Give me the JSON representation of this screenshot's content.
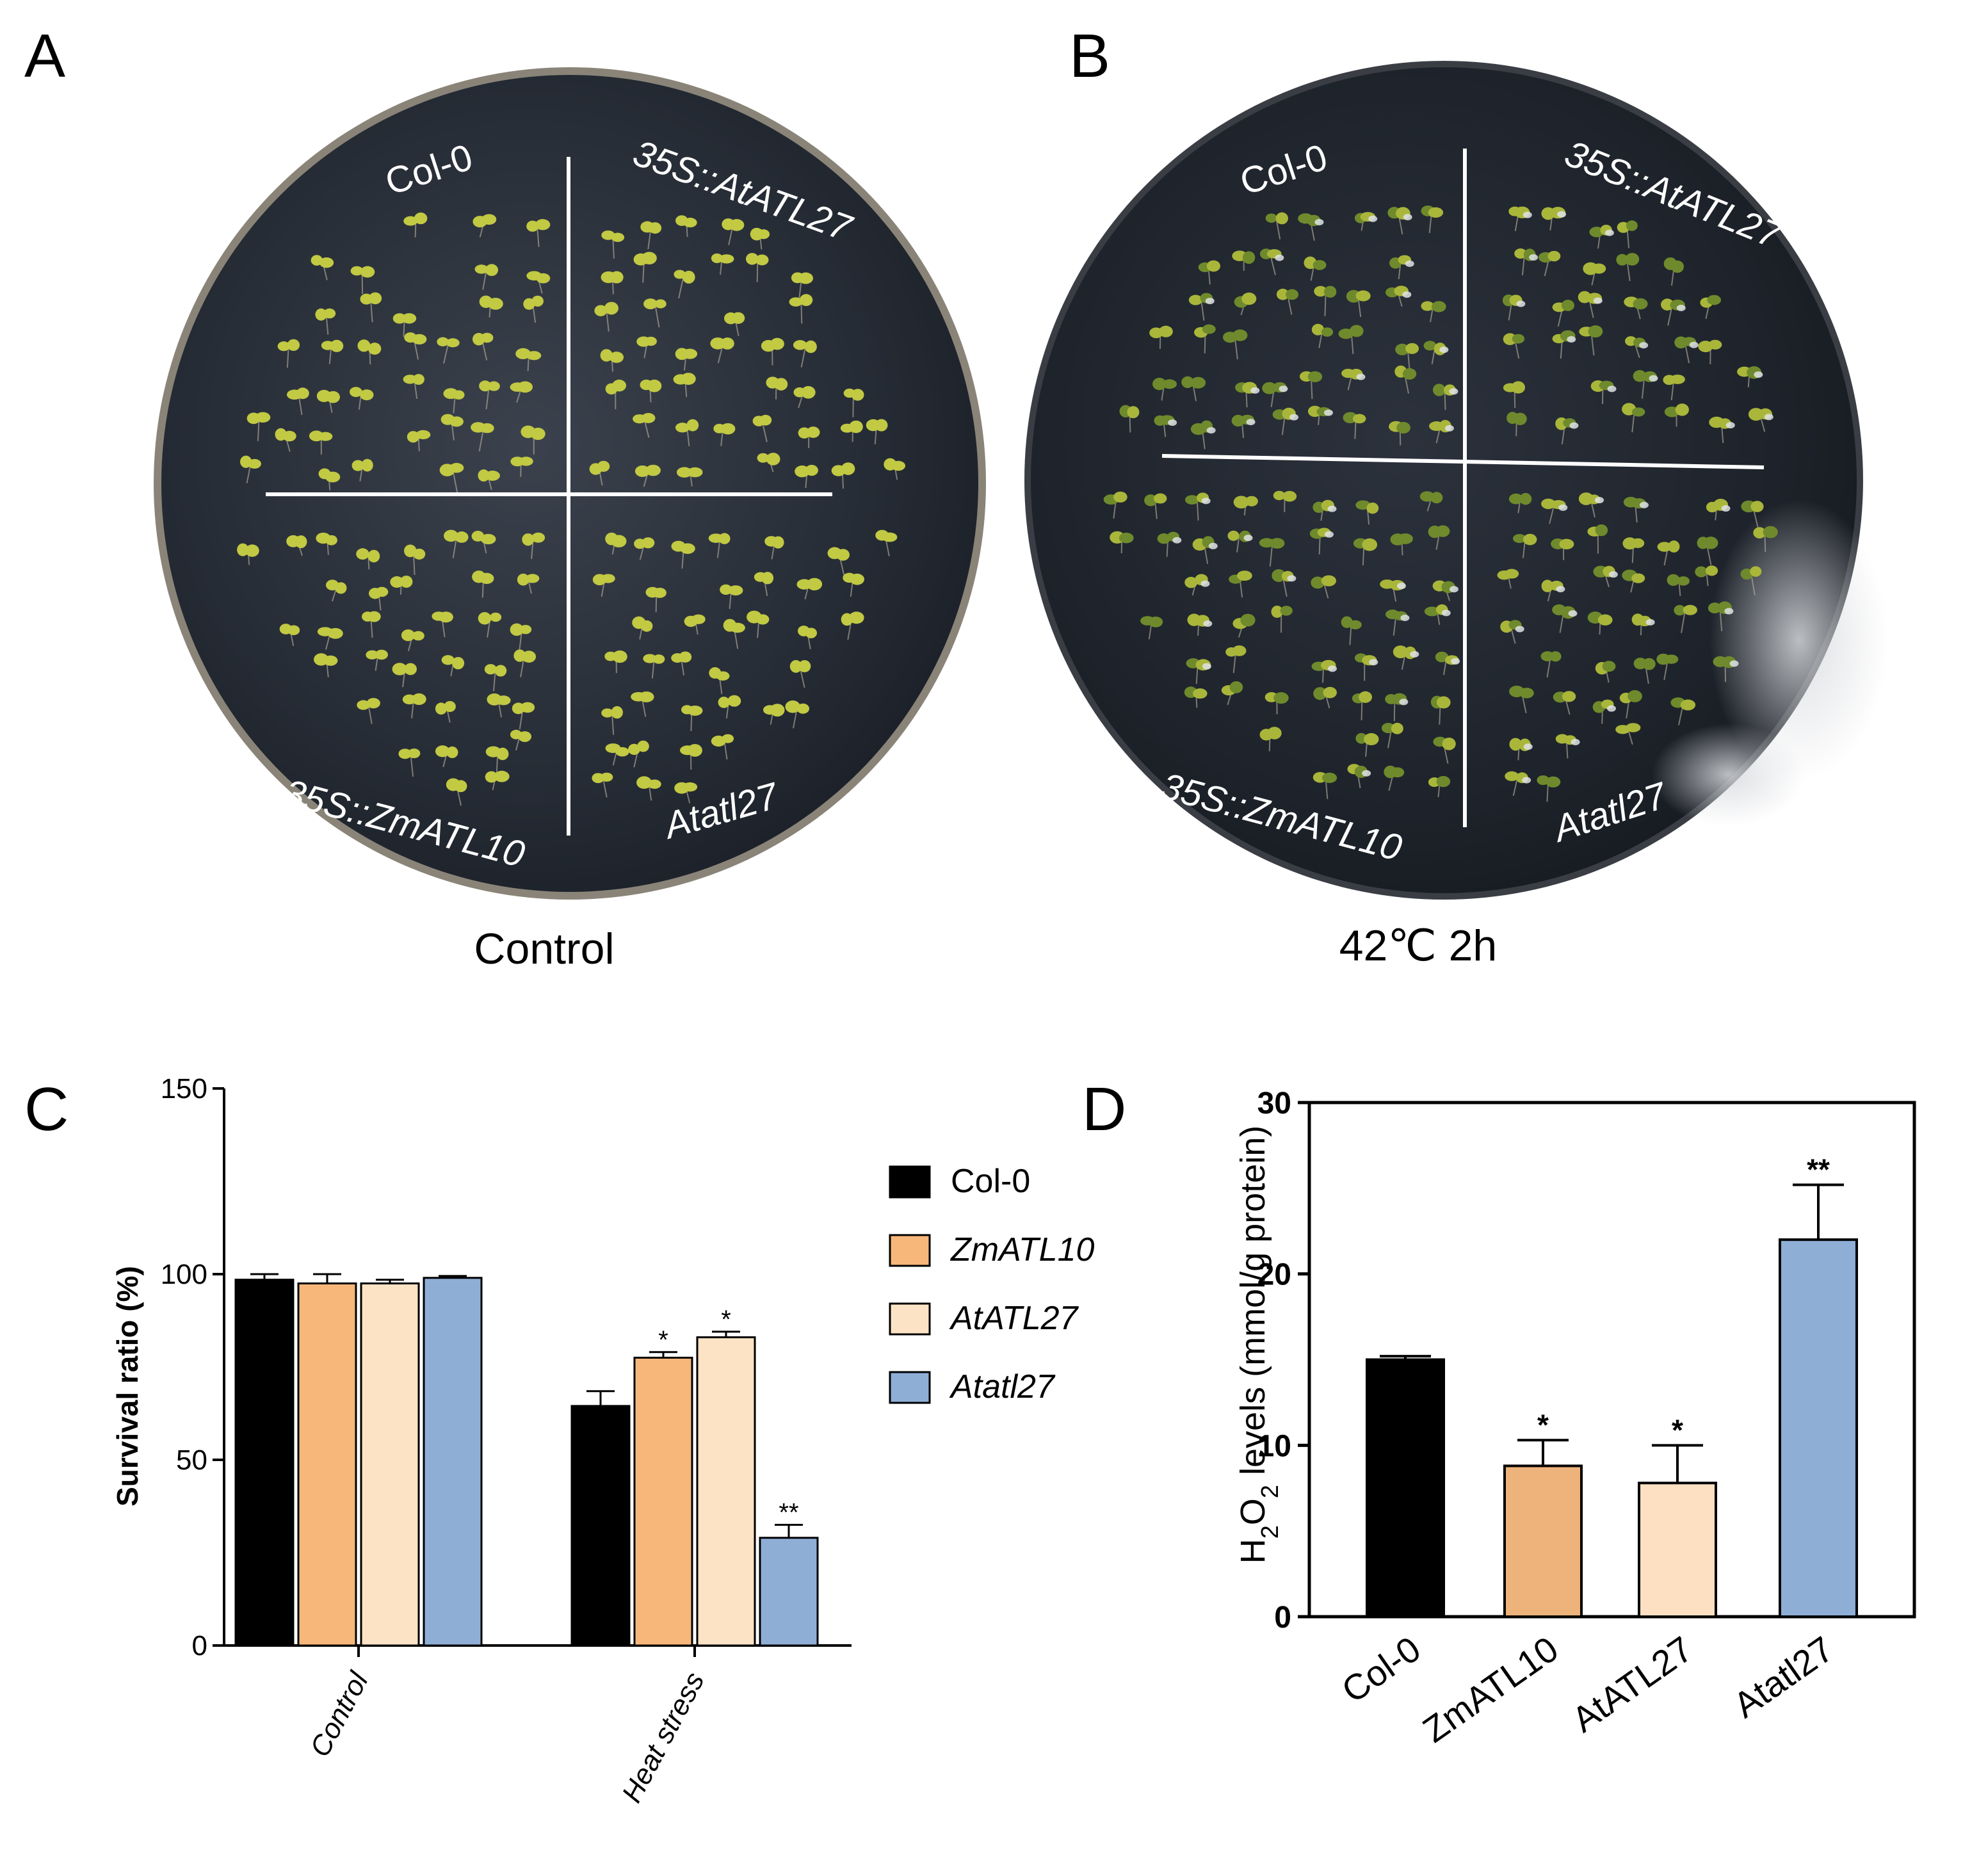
{
  "panels": {
    "A": {
      "letter": "A",
      "caption": "Control",
      "labels": {
        "tl": "Col-0",
        "tr": "35S::AtATL27",
        "bl": "35S::ZmATL10",
        "br": "Atatl27"
      }
    },
    "B": {
      "letter": "B",
      "caption": "42℃ 2h",
      "labels": {
        "tl": "Col-0",
        "tr": "35S::AtATL27",
        "bl": "35S::ZmATL10",
        "br": "Atatl27"
      }
    },
    "C": {
      "letter": "C"
    },
    "D": {
      "letter": "D"
    }
  },
  "colors": {
    "col0": "#000000",
    "zmatl10": "#f7b77a",
    "atatl27": "#fde3c5",
    "atatl27_mutant": "#8eaed6",
    "zmatl10_D": "#eeb37a",
    "atatl27_D": "#fde0c2",
    "plate_bg": "#262c35",
    "seedling": "#c2c943"
  },
  "chart_data": [
    {
      "id": "C",
      "type": "bar",
      "title": "",
      "xlabel": "",
      "ylabel": "Survival ratio (%)",
      "ylim": [
        0,
        150
      ],
      "yticks": [
        "0",
        "50",
        "100",
        "150"
      ],
      "categories": [
        "Control",
        "Heat stress"
      ],
      "series": [
        {
          "name": "Col-0",
          "color": "#000000",
          "values": [
            98.5,
            64.5
          ],
          "errors": [
            1.5,
            4.0
          ],
          "marks": [
            "",
            ""
          ]
        },
        {
          "name": "ZmATL10",
          "color": "#f7b77a",
          "values": [
            97.5,
            77.5
          ],
          "errors": [
            2.5,
            1.5
          ],
          "marks": [
            "",
            "*"
          ]
        },
        {
          "name": "AtATL27",
          "color": "#fde3c5",
          "values": [
            97.5,
            83.0
          ],
          "errors": [
            1.0,
            1.5
          ],
          "marks": [
            "",
            "*"
          ]
        },
        {
          "name": "Atatl27",
          "color": "#8eaed6",
          "values": [
            99.0,
            29.0
          ],
          "errors": [
            0.5,
            3.5
          ],
          "marks": [
            "",
            "**"
          ]
        }
      ],
      "legend": {
        "position": "right"
      }
    },
    {
      "id": "D",
      "type": "bar",
      "title": "",
      "xlabel": "",
      "ylabel_prefix": "H",
      "ylabel_sub1": "2",
      "ylabel_mid": "O",
      "ylabel_sub2": "2",
      "ylabel_suffix": " levels (mmol/g protein)",
      "ylim": [
        0,
        30
      ],
      "yticks": [
        "0",
        "10",
        "20",
        "30"
      ],
      "categories": [
        "Col-0",
        "ZmATL10",
        "AtATL27",
        "Atatl27"
      ],
      "values": [
        15.0,
        8.8,
        7.8,
        22.0
      ],
      "errors": [
        0.2,
        1.5,
        2.2,
        3.2
      ],
      "marks": [
        "",
        "*",
        "*",
        "**"
      ],
      "colors": [
        "#000000",
        "#eeb37a",
        "#fde0c2",
        "#8eaed6"
      ]
    }
  ]
}
